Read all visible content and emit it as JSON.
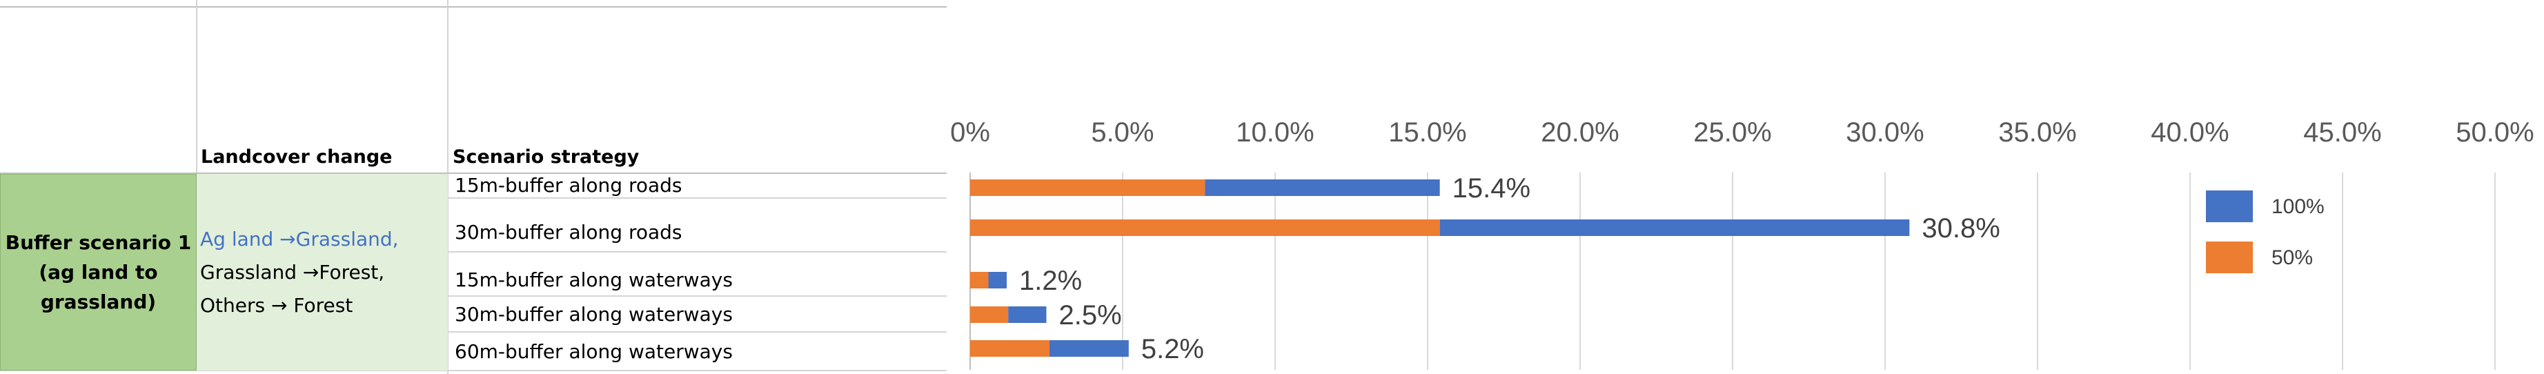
{
  "table": {
    "col_landcover": "Landcover change",
    "col_strategy": "Scenario strategy",
    "scenario": [
      "Buffer scenario 1",
      "(ag land to",
      "grassland)"
    ],
    "landcover": {
      "line1": "Ag land →Grassland,",
      "line2": "Grassland →Forest,",
      "line3": "Others → Forest"
    },
    "strategies": [
      "15m-buffer along roads",
      "30m-buffer along roads",
      "15m-buffer along waterways",
      "30m-buffer along waterways",
      "60m-buffer along waterways"
    ]
  },
  "chart_data": {
    "type": "bar",
    "orientation": "horizontal",
    "stacked": true,
    "categories": [
      "15m-buffer along roads",
      "30m-buffer along roads",
      "15m-buffer along waterways",
      "30m-buffer along waterways",
      "60m-buffer along waterways"
    ],
    "series": [
      {
        "name": "50%",
        "color": "#ed7d31",
        "values": [
          7.7,
          15.4,
          0.6,
          1.25,
          2.6
        ]
      },
      {
        "name": "100%",
        "color": "#4472c4",
        "values": [
          7.7,
          15.4,
          0.6,
          1.25,
          2.6
        ]
      }
    ],
    "data_labels": [
      "15.4%",
      "30.8%",
      "1.2%",
      "2.5%",
      "5.2%"
    ],
    "totals": [
      15.4,
      30.8,
      1.2,
      2.5,
      5.2
    ],
    "xlim": [
      0,
      50
    ],
    "xticks": [
      0,
      5,
      10,
      15,
      20,
      25,
      30,
      35,
      40,
      45,
      50
    ],
    "xtick_labels": [
      "0%",
      "5.0%",
      "10.0%",
      "15.0%",
      "20.0%",
      "25.0%",
      "30.0%",
      "35.0%",
      "40.0%",
      "45.0%",
      "50.0%"
    ],
    "axis_position": "top",
    "grid": true,
    "legend": {
      "position": "right",
      "entries": [
        "100%",
        "50%"
      ]
    }
  }
}
